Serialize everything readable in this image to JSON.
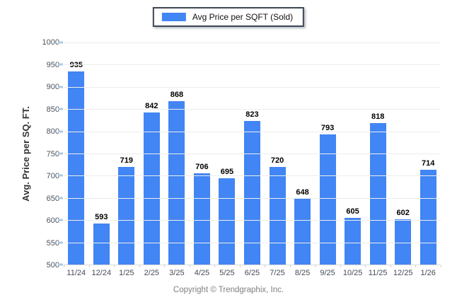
{
  "legend": {
    "label": "Avg Price per SQFT (Sold)",
    "swatch_color": "#4285F4"
  },
  "footer": {
    "copyright": "Copyright © Trendgraphix, Inc."
  },
  "chart_data": {
    "type": "bar",
    "title": "Avg Price per SQFT (Sold)",
    "categories": [
      "11/24",
      "12/24",
      "1/25",
      "2/25",
      "3/25",
      "4/25",
      "5/25",
      "6/25",
      "7/25",
      "8/25",
      "9/25",
      "10/25",
      "11/25",
      "12/25",
      "1/26"
    ],
    "values": [
      935,
      593,
      719,
      842,
      868,
      706,
      695,
      823,
      720,
      648,
      793,
      605,
      818,
      602,
      714
    ],
    "xlabel": "",
    "ylabel": "Avg. Price per SQ. FT.",
    "ylim": [
      500,
      1000
    ],
    "ytick_step": 50,
    "grid": "horizontal",
    "legend_position": "top-center",
    "bar_color": "#4285F4",
    "value_labels": "above-bars"
  }
}
